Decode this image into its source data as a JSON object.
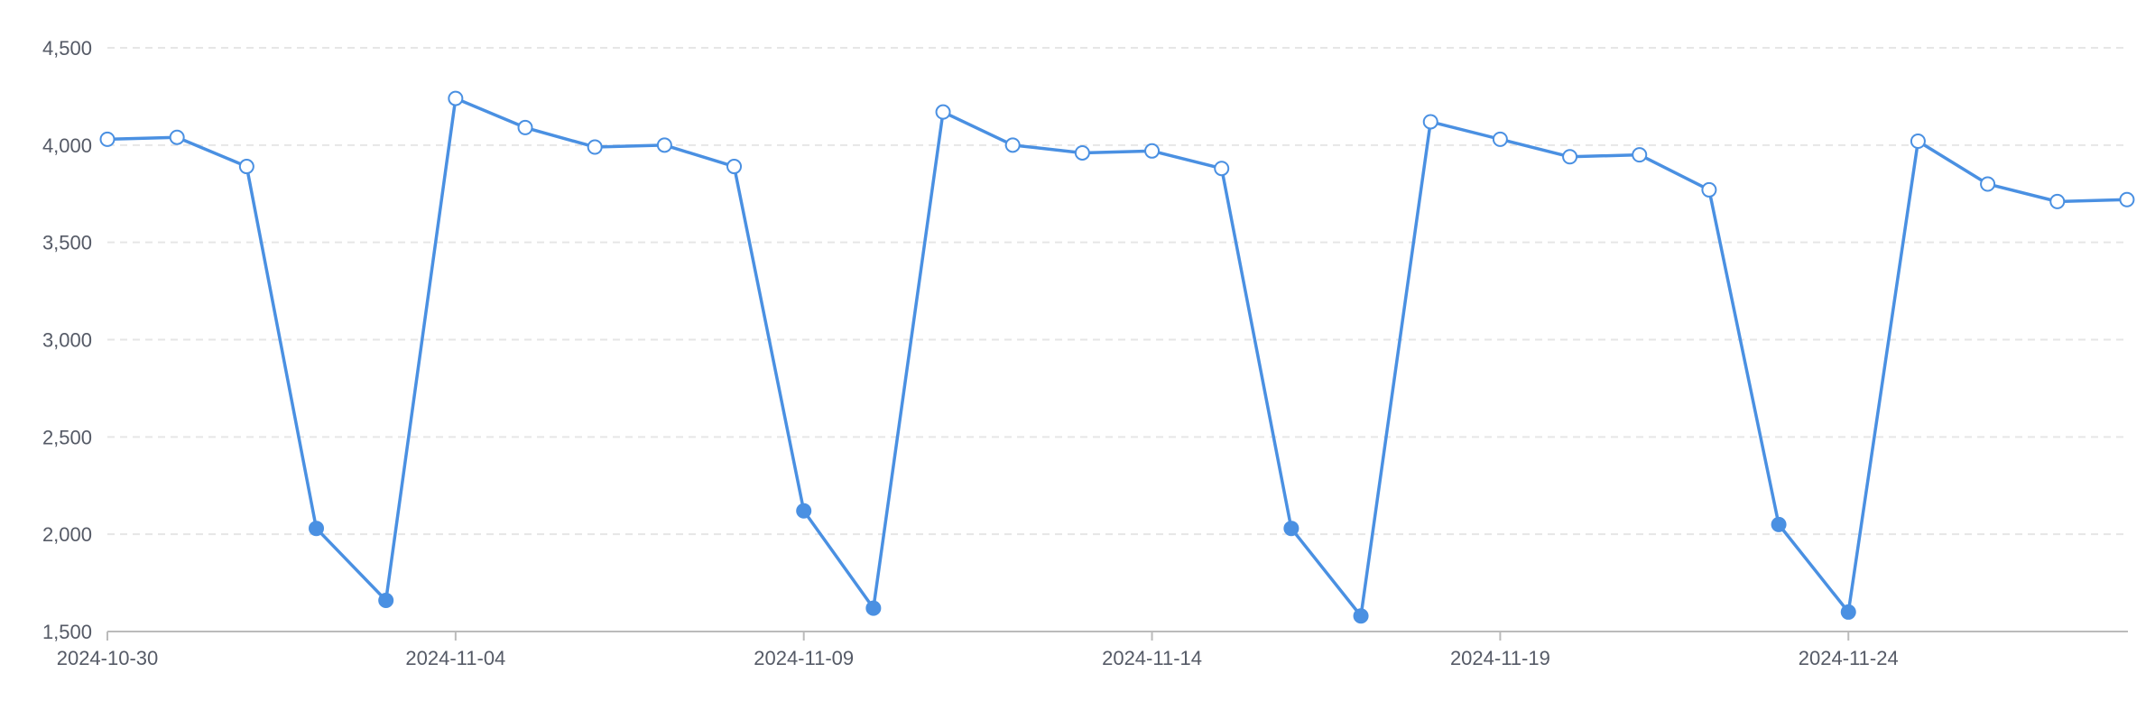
{
  "chart_data": {
    "type": "line",
    "title": "",
    "xlabel": "",
    "ylabel": "",
    "x": [
      "2024-10-30",
      "2024-10-31",
      "2024-11-01",
      "2024-11-02",
      "2024-11-03",
      "2024-11-04",
      "2024-11-05",
      "2024-11-06",
      "2024-11-07",
      "2024-11-08",
      "2024-11-09",
      "2024-11-10",
      "2024-11-11",
      "2024-11-12",
      "2024-11-13",
      "2024-11-14",
      "2024-11-15",
      "2024-11-16",
      "2024-11-17",
      "2024-11-18",
      "2024-11-19",
      "2024-11-20",
      "2024-11-21",
      "2024-11-22",
      "2024-11-23",
      "2024-11-24",
      "2024-11-25",
      "2024-11-26",
      "2024-11-27",
      "2024-11-28"
    ],
    "series": [
      {
        "values": [
          4030,
          4040,
          3890,
          2030,
          1660,
          4240,
          4090,
          3990,
          4000,
          3890,
          2120,
          1620,
          4170,
          4000,
          3960,
          3970,
          3880,
          2030,
          1580,
          4120,
          4030,
          3940,
          3950,
          3770,
          2050,
          1600,
          4020,
          3800,
          3710,
          3720
        ]
      }
    ],
    "xticks": [
      "2024-10-30",
      "2024-11-04",
      "2024-11-09",
      "2024-11-14",
      "2024-11-19",
      "2024-11-24"
    ],
    "yticks": [
      1500,
      2000,
      2500,
      3000,
      3500,
      4000,
      4500
    ],
    "ytick_labels": [
      "1,500",
      "2,000",
      "2,500",
      "3,000",
      "3,500",
      "4,000",
      "4,500"
    ],
    "ylim": [
      1500,
      4500
    ],
    "grid": true,
    "colors": {
      "line": "#4a90e2",
      "marker_fill_normal": "#ffffff",
      "marker_fill_weekend": "#4a90e2",
      "grid": "#e6e6e6",
      "axis": "#bbbbbb",
      "tick_text": "#555a66"
    }
  }
}
